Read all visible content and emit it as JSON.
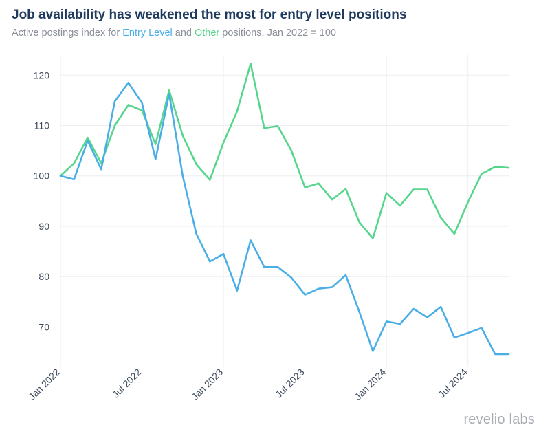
{
  "header": {
    "title": "Job availability has weakened the most for entry level positions",
    "subtitle_prefix": "Active postings index for ",
    "subtitle_entry": "Entry Level",
    "subtitle_mid": " and ",
    "subtitle_other": "Other",
    "subtitle_suffix": " positions, Jan 2022 = 100"
  },
  "brand": {
    "logo_text": "revelio labs"
  },
  "colors": {
    "entry": "#4aaee6",
    "other": "#56d68c",
    "title": "#1f3a5c",
    "grid": "#eceef1",
    "axis_text": "#3d4a5c"
  },
  "chart_data": {
    "type": "line",
    "title": "Job availability has weakened the most for entry level positions",
    "subtitle": "Active postings index for Entry Level and Other positions, Jan 2022 = 100",
    "xlabel": "",
    "ylabel": "",
    "x": [
      "2022-01",
      "2022-02",
      "2022-03",
      "2022-04",
      "2022-05",
      "2022-06",
      "2022-07",
      "2022-08",
      "2022-09",
      "2022-10",
      "2022-11",
      "2022-12",
      "2023-01",
      "2023-02",
      "2023-03",
      "2023-04",
      "2023-05",
      "2023-06",
      "2023-07",
      "2023-08",
      "2023-09",
      "2023-10",
      "2023-11",
      "2023-12",
      "2024-01",
      "2024-02",
      "2024-03",
      "2024-04",
      "2024-05",
      "2024-06",
      "2024-07",
      "2024-08",
      "2024-09",
      "2024-10"
    ],
    "x_ticks": [
      "Jan 2022",
      "Jul 2022",
      "Jan 2023",
      "Jul 2023",
      "Jan 2024",
      "Jul 2024"
    ],
    "x_tick_positions": [
      "2022-01",
      "2022-07",
      "2023-01",
      "2023-07",
      "2024-01",
      "2024-07"
    ],
    "y_ticks": [
      70,
      80,
      90,
      100,
      110,
      120
    ],
    "ylim": [
      62,
      124
    ],
    "grid": true,
    "legend": "none (series named in subtitle)",
    "series": [
      {
        "name": "Entry Level",
        "color": "#4aaee6",
        "values": [
          100,
          99.3,
          107,
          101.3,
          114.8,
          118.5,
          114.5,
          103.3,
          116.3,
          100,
          88.5,
          83,
          84.5,
          77.2,
          87.2,
          81.9,
          81.9,
          79.8,
          76.4,
          77.6,
          77.9,
          80.3,
          73,
          65.2,
          71.1,
          70.6,
          73.6,
          71.9,
          74,
          67.9,
          68.8,
          69.8,
          64.6,
          64.6
        ]
      },
      {
        "name": "Other",
        "color": "#56d68c",
        "values": [
          100,
          102.5,
          107.6,
          102.5,
          110,
          114.1,
          113,
          106.3,
          117,
          108,
          102.3,
          99.2,
          106.6,
          112.8,
          122.3,
          109.5,
          109.9,
          105,
          97.7,
          98.5,
          95.3,
          97.4,
          90.8,
          87.6,
          96.6,
          94.1,
          97.3,
          97.3,
          91.7,
          88.5,
          94.8,
          100.4,
          101.8,
          101.6
        ]
      }
    ]
  }
}
